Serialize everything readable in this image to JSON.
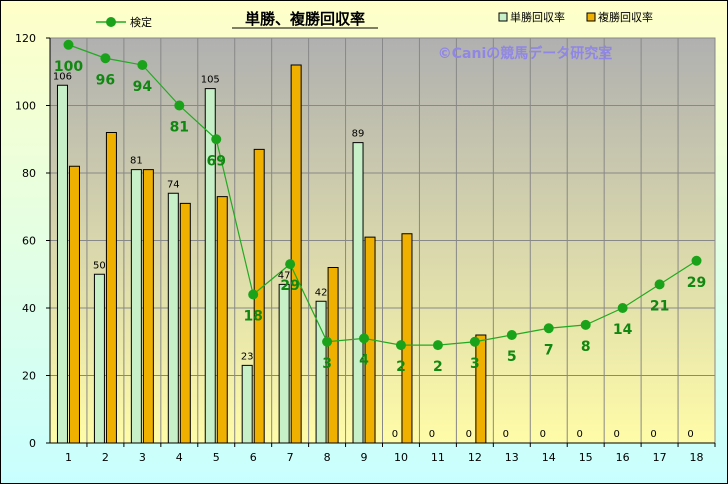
{
  "chart_data": {
    "type": "bar",
    "title": "単勝、複勝回収率",
    "copyright": "©Caniの競馬データ研究室",
    "categories": [
      "1",
      "2",
      "3",
      "4",
      "5",
      "6",
      "7",
      "8",
      "9",
      "10",
      "11",
      "12",
      "13",
      "14",
      "15",
      "16",
      "17",
      "18"
    ],
    "series": [
      {
        "name": "単勝回収率",
        "type": "bar",
        "color": "#c8f0c8",
        "values": [
          106,
          50,
          81,
          74,
          105,
          23,
          47,
          42,
          89,
          0,
          0,
          0,
          0,
          0,
          0,
          0,
          0,
          0
        ],
        "labels": [
          "106",
          "50",
          "81",
          "74",
          "105",
          "23",
          "47",
          "42",
          "89",
          "0",
          "0",
          "0",
          "0",
          "0",
          "0",
          "0",
          "0",
          "0"
        ]
      },
      {
        "name": "複勝回収率",
        "type": "bar",
        "color": "#f0b000",
        "values": [
          82,
          92,
          81,
          71,
          73,
          87,
          112,
          52,
          61,
          62,
          0,
          32,
          0,
          0,
          0,
          0,
          0,
          0
        ]
      },
      {
        "name": "検定",
        "type": "line",
        "color": "#22aa22",
        "values": [
          118,
          114,
          112,
          100,
          90,
          44,
          53,
          30,
          31,
          29,
          29,
          30,
          32,
          34,
          35,
          40,
          47,
          54
        ],
        "labels": [
          "100",
          "96",
          "94",
          "81",
          "69",
          "18",
          "29",
          "3",
          "4",
          "2",
          "2",
          "3",
          "5",
          "7",
          "8",
          "14",
          "21",
          "29"
        ]
      }
    ],
    "ylim": [
      0,
      120
    ],
    "yticks": [
      "0",
      "20",
      "40",
      "60",
      "80",
      "100",
      "120"
    ],
    "grid": true,
    "legend": "top"
  },
  "colors": {
    "plot_top": "#b0b0b0",
    "plot_bottom": "#fffca8",
    "frame": "#000000",
    "chart_bg_top": "#ffffc8",
    "chart_bg_bottom": "#c8ffff",
    "grid": "#888888"
  }
}
